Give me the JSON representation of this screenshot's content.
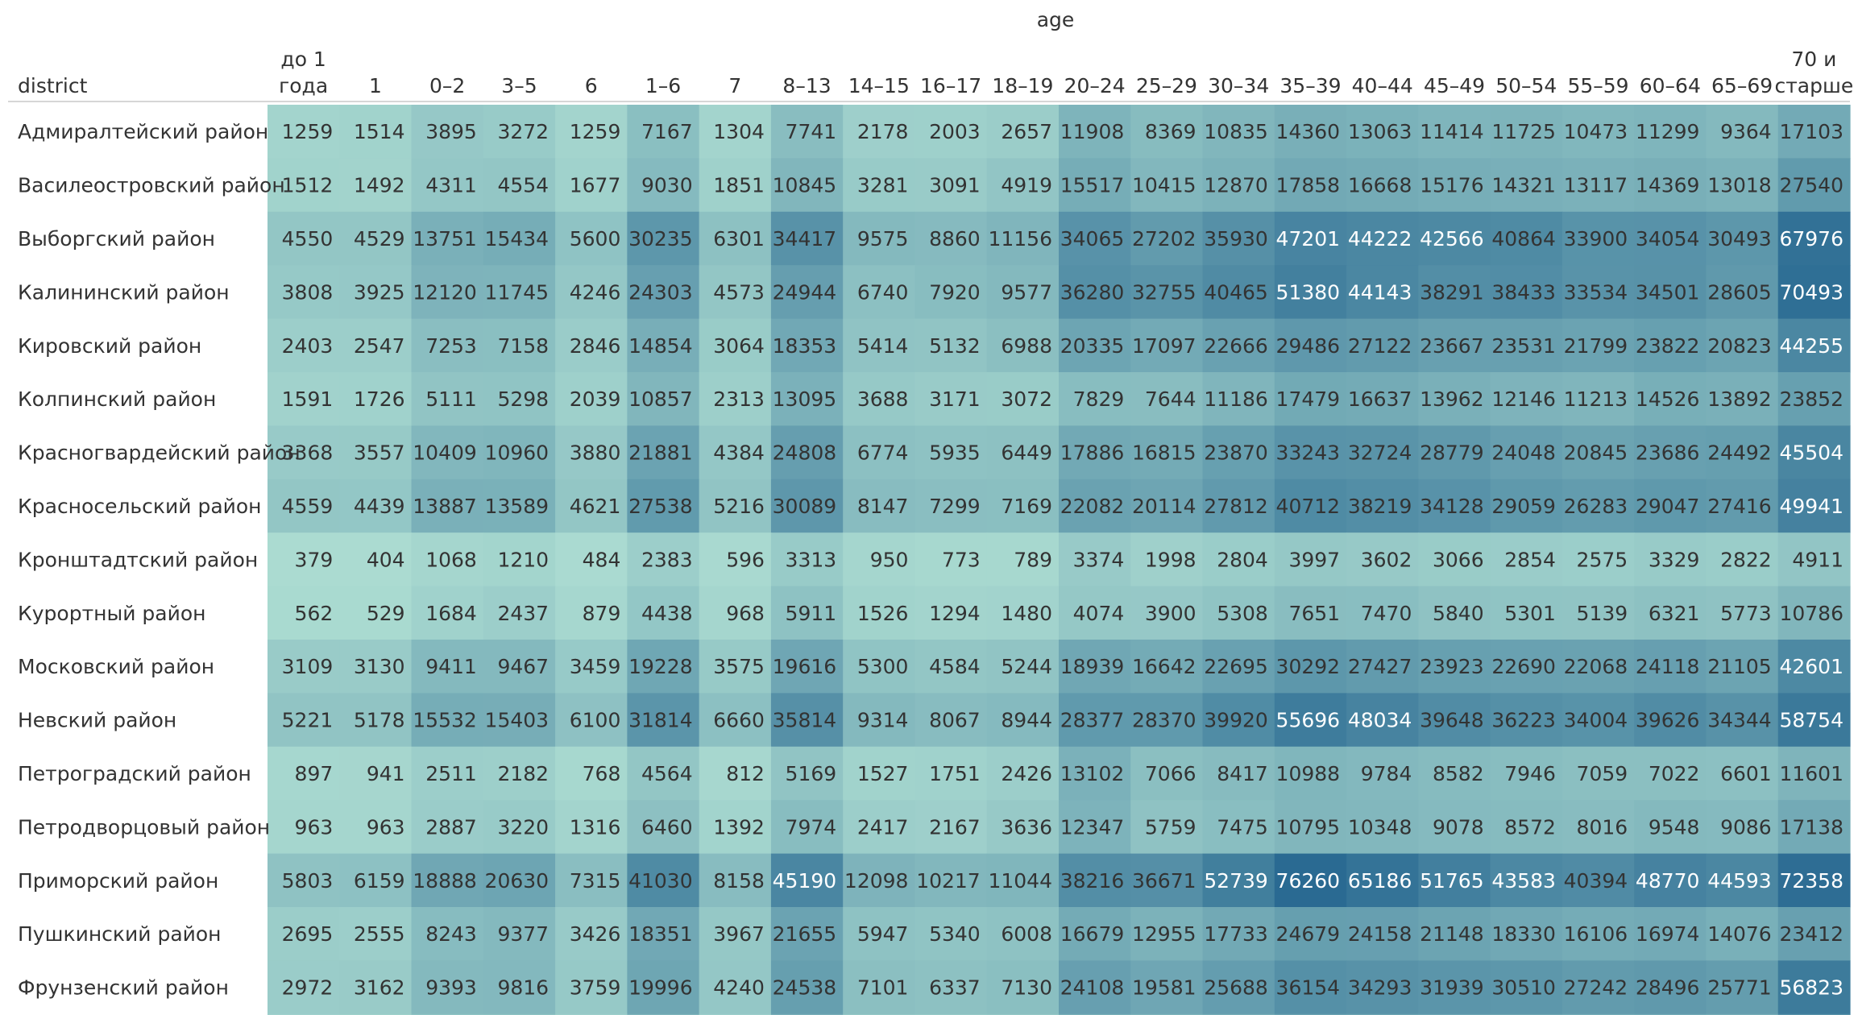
{
  "chart_data": {
    "type": "heatmap",
    "column_group_label": "age",
    "row_header": "district",
    "columns": [
      [
        "до 1",
        "года"
      ],
      [
        "1"
      ],
      [
        "0–2"
      ],
      [
        "3–5"
      ],
      [
        "6"
      ],
      [
        "1–6"
      ],
      [
        "7"
      ],
      [
        "8–13"
      ],
      [
        "14–15"
      ],
      [
        "16–17"
      ],
      [
        "18–19"
      ],
      [
        "20–24"
      ],
      [
        "25–29"
      ],
      [
        "30–34"
      ],
      [
        "35–39"
      ],
      [
        "40–44"
      ],
      [
        "45–49"
      ],
      [
        "50–54"
      ],
      [
        "55–59"
      ],
      [
        "60–64"
      ],
      [
        "65–69"
      ],
      [
        "70 и",
        "старше"
      ]
    ],
    "rows": [
      "Адмиралтейский район",
      "Василеостровский район",
      "Выборгский район",
      "Калининский район",
      "Кировский район",
      "Колпинский район",
      "Красногвардейский район",
      "Красносельский район",
      "Кронштадтский район",
      "Курортный район",
      "Московский район",
      "Невский район",
      "Петроградский район",
      "Петродворцовый район",
      "Приморский район",
      "Пушкинский район",
      "Фрунзенский район"
    ],
    "values": [
      [
        1259,
        1514,
        3895,
        3272,
        1259,
        7167,
        1304,
        7741,
        2178,
        2003,
        2657,
        11908,
        8369,
        10835,
        14360,
        13063,
        11414,
        11725,
        10473,
        11299,
        9364,
        17103
      ],
      [
        1512,
        1492,
        4311,
        4554,
        1677,
        9030,
        1851,
        10845,
        3281,
        3091,
        4919,
        15517,
        10415,
        12870,
        17858,
        16668,
        15176,
        14321,
        13117,
        14369,
        13018,
        27540
      ],
      [
        4550,
        4529,
        13751,
        15434,
        5600,
        30235,
        6301,
        34417,
        9575,
        8860,
        11156,
        34065,
        27202,
        35930,
        47201,
        44222,
        42566,
        40864,
        33900,
        34054,
        30493,
        67976
      ],
      [
        3808,
        3925,
        12120,
        11745,
        4246,
        24303,
        4573,
        24944,
        6740,
        7920,
        9577,
        36280,
        32755,
        40465,
        51380,
        44143,
        38291,
        38433,
        33534,
        34501,
        28605,
        70493
      ],
      [
        2403,
        2547,
        7253,
        7158,
        2846,
        14854,
        3064,
        18353,
        5414,
        5132,
        6988,
        20335,
        17097,
        22666,
        29486,
        27122,
        23667,
        23531,
        21799,
        23822,
        20823,
        44255
      ],
      [
        1591,
        1726,
        5111,
        5298,
        2039,
        10857,
        2313,
        13095,
        3688,
        3171,
        3072,
        7829,
        7644,
        11186,
        17479,
        16637,
        13962,
        12146,
        11213,
        14526,
        13892,
        23852
      ],
      [
        3368,
        3557,
        10409,
        10960,
        3880,
        21881,
        4384,
        24808,
        6774,
        5935,
        6449,
        17886,
        16815,
        23870,
        33243,
        32724,
        28779,
        24048,
        20845,
        23686,
        24492,
        45504
      ],
      [
        4559,
        4439,
        13887,
        13589,
        4621,
        27538,
        5216,
        30089,
        8147,
        7299,
        7169,
        22082,
        20114,
        27812,
        40712,
        38219,
        34128,
        29059,
        26283,
        29047,
        27416,
        49941
      ],
      [
        379,
        404,
        1068,
        1210,
        484,
        2383,
        596,
        3313,
        950,
        773,
        789,
        3374,
        1998,
        2804,
        3997,
        3602,
        3066,
        2854,
        2575,
        3329,
        2822,
        4911
      ],
      [
        562,
        529,
        1684,
        2437,
        879,
        4438,
        968,
        5911,
        1526,
        1294,
        1480,
        4074,
        3900,
        5308,
        7651,
        7470,
        5840,
        5301,
        5139,
        6321,
        5773,
        10786
      ],
      [
        3109,
        3130,
        9411,
        9467,
        3459,
        19228,
        3575,
        19616,
        5300,
        4584,
        5244,
        18939,
        16642,
        22695,
        30292,
        27427,
        23923,
        22690,
        22068,
        24118,
        21105,
        42601
      ],
      [
        5221,
        5178,
        15532,
        15403,
        6100,
        31814,
        6660,
        35814,
        9314,
        8067,
        8944,
        28377,
        28370,
        39920,
        55696,
        48034,
        39648,
        36223,
        34004,
        39626,
        34344,
        58754
      ],
      [
        897,
        941,
        2511,
        2182,
        768,
        4564,
        812,
        5169,
        1527,
        1751,
        2426,
        13102,
        7066,
        8417,
        10988,
        9784,
        8582,
        7946,
        7059,
        7022,
        6601,
        11601
      ],
      [
        963,
        963,
        2887,
        3220,
        1316,
        6460,
        1392,
        7974,
        2417,
        2167,
        3636,
        12347,
        5759,
        7475,
        10795,
        10348,
        9078,
        8572,
        8016,
        9548,
        9086,
        17138
      ],
      [
        5803,
        6159,
        18888,
        20630,
        7315,
        41030,
        8158,
        45190,
        12098,
        10217,
        11044,
        38216,
        36671,
        52739,
        76260,
        65186,
        51765,
        43583,
        40394,
        48770,
        44593,
        72358
      ],
      [
        2695,
        2555,
        8243,
        9377,
        3426,
        18351,
        3967,
        21655,
        5947,
        5340,
        6008,
        16679,
        12955,
        17733,
        24679,
        24158,
        21148,
        18330,
        16106,
        16974,
        14076,
        23412
      ],
      [
        2972,
        3162,
        9393,
        9816,
        3759,
        19996,
        4240,
        24538,
        7101,
        6337,
        7130,
        24108,
        19581,
        25688,
        36154,
        34293,
        31939,
        30510,
        27242,
        28496,
        25771,
        56823
      ]
    ],
    "color_scale": {
      "low": "#b5e4d6",
      "high": "#2a6a92"
    },
    "light_text_color": "#ffffff",
    "dark_text_color": "#333333"
  }
}
